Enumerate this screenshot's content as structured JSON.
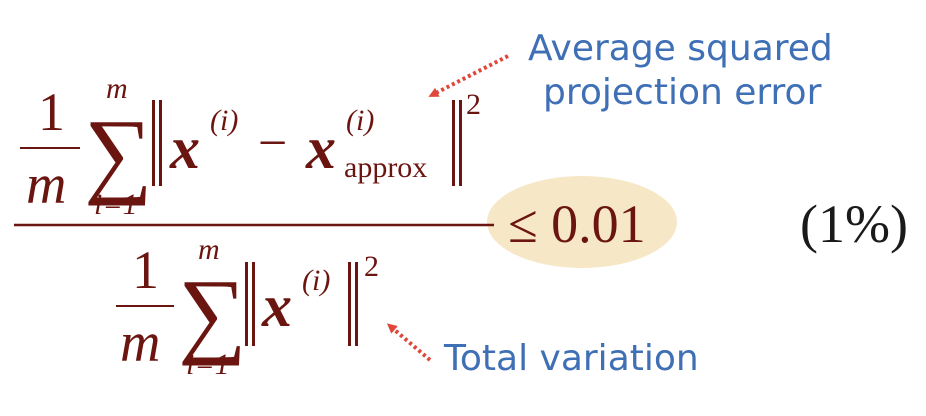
{
  "colors": {
    "formula": "#6B1510",
    "annotation": "#3F6FB5",
    "arrow": "#E0473A",
    "highlight": "#F6E7C6",
    "text_black": "#1a1a1a"
  },
  "formula": {
    "numerator": {
      "frac_num": "1",
      "frac_den": "m",
      "sum_upper": "m",
      "sum_lower": "i=1",
      "norm_symbol": "‖",
      "vector": "x",
      "superscript": "(i)",
      "minus": "−",
      "approx_vector": "x",
      "approx_superscript": "(i)",
      "approx_subscript": "approx",
      "exponent": "2"
    },
    "denominator": {
      "frac_num": "1",
      "frac_den": "m",
      "sum_upper": "m",
      "sum_lower": "i=1",
      "norm_symbol": "‖",
      "vector": "x",
      "superscript": "(i)",
      "exponent": "2"
    },
    "sum_symbol": "∑",
    "inequality": "≤ 0.01",
    "percent": "(1%)"
  },
  "annotations": {
    "numerator_label_line1": "Average squared",
    "numerator_label_line2": "projection error",
    "denominator_label": "Total variation"
  }
}
